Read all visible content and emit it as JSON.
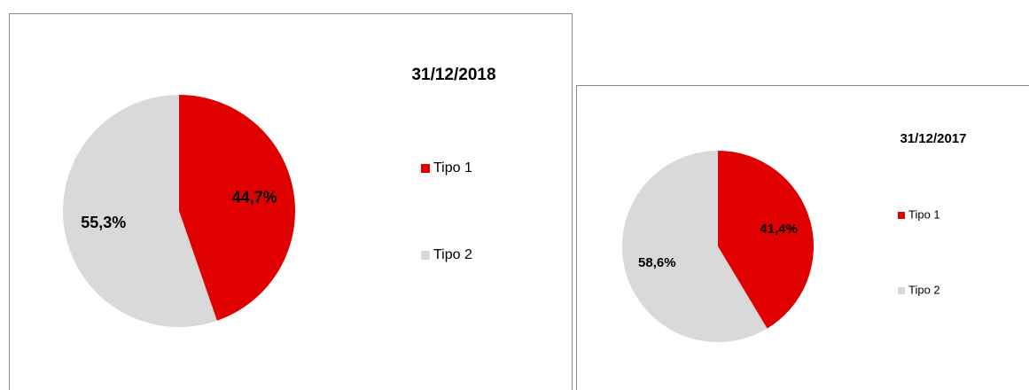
{
  "chart_data": [
    {
      "type": "pie",
      "title": "31/12/2018",
      "categories": [
        "Tipo 1",
        "Tipo 2"
      ],
      "values": [
        44.7,
        55.3
      ],
      "value_labels": [
        "44,7%",
        "55,3%"
      ],
      "colors": [
        "#e00000",
        "#d9d9d9"
      ]
    },
    {
      "type": "pie",
      "title": "31/12/2017",
      "categories": [
        "Tipo 1",
        "Tipo 2"
      ],
      "values": [
        41.4,
        58.6
      ],
      "value_labels": [
        "41,4%",
        "58,6%"
      ],
      "colors": [
        "#e00000",
        "#d9d9d9"
      ]
    }
  ]
}
